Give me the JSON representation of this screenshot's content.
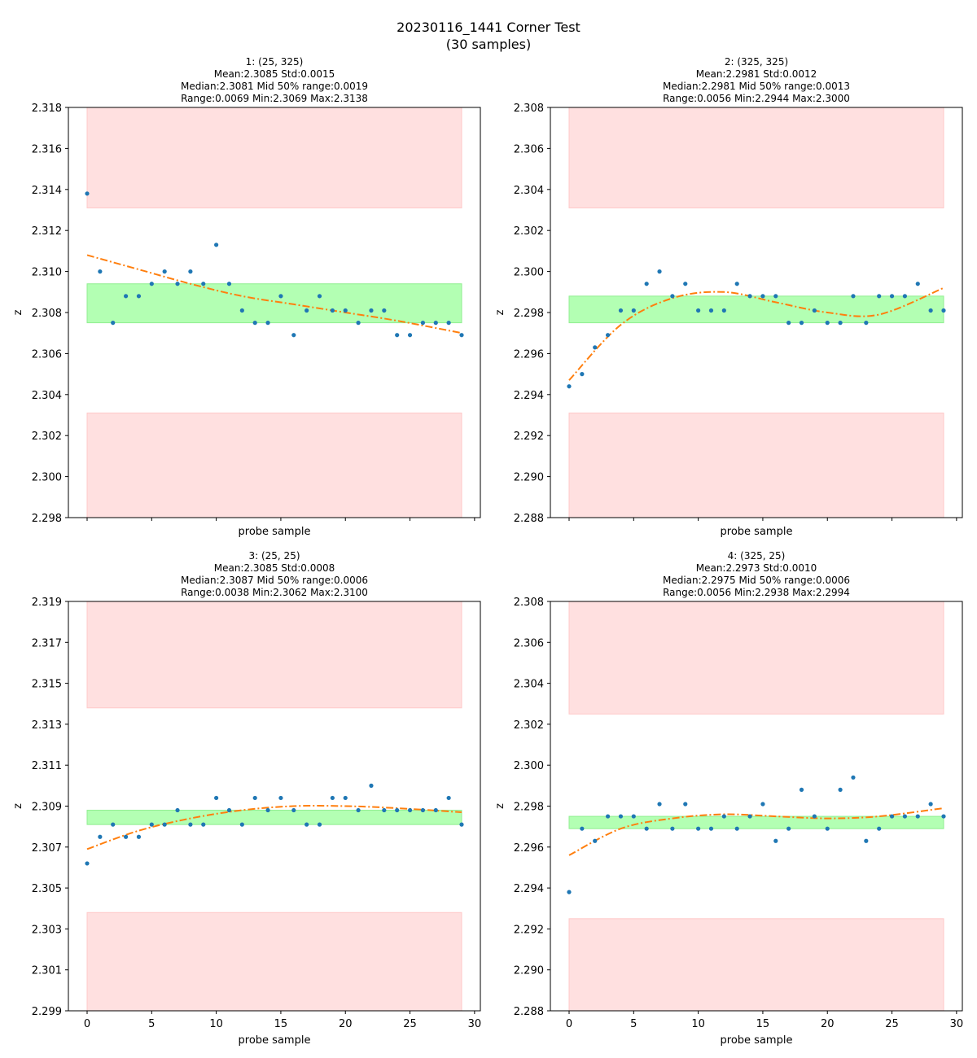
{
  "figure": {
    "title_line1": "20230116_1441 Corner Test",
    "title_line2": "(30 samples)"
  },
  "colors": {
    "point": "#1f77b4",
    "fit": "#ff7f0e",
    "green_band": "#b3ffb3",
    "red_band": "#ffe0e0"
  },
  "chart_data": [
    {
      "type": "scatter",
      "title_lines": [
        "1: (25, 325)",
        "Mean:2.3085  Std:0.0015",
        "Median:2.3081  Mid 50% range:0.0019",
        "Range:0.0069  Min:2.3069  Max:2.3138"
      ],
      "xlabel": "probe sample",
      "ylabel": "z",
      "xlim": [
        -1.45,
        30.45
      ],
      "ylim": [
        2.298,
        2.318
      ],
      "xticks": [
        0,
        5,
        10,
        15,
        20,
        25,
        30
      ],
      "xticklabels_shown": false,
      "yticks": [
        2.298,
        2.3,
        2.302,
        2.304,
        2.306,
        2.308,
        2.31,
        2.312,
        2.314,
        2.316,
        2.318
      ],
      "ytick_labels": [
        "2.298",
        "2.300",
        "2.302",
        "2.304",
        "2.306",
        "2.308",
        "2.310",
        "2.312",
        "2.314",
        "2.316",
        "2.318"
      ],
      "green_band": [
        2.3075,
        2.3094
      ],
      "red_bands": [
        [
          2.298,
          2.3031
        ],
        [
          2.3131,
          2.318
        ]
      ],
      "x": [
        0,
        1,
        2,
        3,
        4,
        5,
        6,
        7,
        8,
        9,
        10,
        11,
        12,
        13,
        14,
        15,
        16,
        17,
        18,
        19,
        20,
        21,
        22,
        23,
        24,
        25,
        26,
        27,
        28,
        29
      ],
      "y": [
        2.3138,
        2.31,
        2.3075,
        2.3088,
        2.3088,
        2.3094,
        2.31,
        2.3094,
        2.31,
        2.3094,
        2.3113,
        2.3094,
        2.3081,
        2.3075,
        2.3075,
        2.3088,
        2.3069,
        2.3081,
        2.3088,
        2.3081,
        2.3081,
        2.3075,
        2.3081,
        2.3081,
        2.3069,
        2.3069,
        2.3075,
        2.3075,
        2.3075,
        2.3069
      ],
      "fit": [
        2.3108,
        2.3101,
        2.3094,
        2.3088,
        2.3084,
        2.308,
        2.3076,
        2.307
      ]
    },
    {
      "type": "scatter",
      "title_lines": [
        "2: (325, 325)",
        "Mean:2.2981  Std:0.0012",
        "Median:2.2981  Mid 50% range:0.0013",
        "Range:0.0056  Min:2.2944  Max:2.3000"
      ],
      "xlabel": "probe sample",
      "ylabel": "z",
      "xlim": [
        -1.45,
        30.45
      ],
      "ylim": [
        2.288,
        2.308
      ],
      "xticks": [
        0,
        5,
        10,
        15,
        20,
        25,
        30
      ],
      "xticklabels_shown": false,
      "yticks": [
        2.288,
        2.29,
        2.292,
        2.294,
        2.296,
        2.298,
        2.3,
        2.302,
        2.304,
        2.306,
        2.308
      ],
      "ytick_labels": [
        "2.288",
        "2.290",
        "2.292",
        "2.294",
        "2.296",
        "2.298",
        "2.300",
        "2.302",
        "2.304",
        "2.306",
        "2.308"
      ],
      "green_band": [
        2.2975,
        2.2988
      ],
      "red_bands": [
        [
          2.288,
          2.2931
        ],
        [
          2.3031,
          2.308
        ]
      ],
      "x": [
        0,
        1,
        2,
        3,
        4,
        5,
        6,
        7,
        8,
        9,
        10,
        11,
        12,
        13,
        14,
        15,
        16,
        17,
        18,
        19,
        20,
        21,
        22,
        23,
        24,
        25,
        26,
        27,
        28,
        29
      ],
      "y": [
        2.2944,
        2.295,
        2.2963,
        2.2969,
        2.2981,
        2.2981,
        2.2994,
        2.3,
        2.2988,
        2.2994,
        2.2981,
        2.2981,
        2.2981,
        2.2994,
        2.2988,
        2.2988,
        2.2988,
        2.2975,
        2.2975,
        2.2981,
        2.2975,
        2.2975,
        2.2988,
        2.2975,
        2.2988,
        2.2988,
        2.2988,
        2.2994,
        2.2981,
        2.2981
      ],
      "fit": [
        2.2947,
        2.2974,
        2.2987,
        2.299,
        2.2985,
        2.298,
        2.2979,
        2.2992
      ]
    },
    {
      "type": "scatter",
      "title_lines": [
        "3: (25, 25)",
        "Mean:2.3085  Std:0.0008",
        "Median:2.3087  Mid 50% range:0.0006",
        "Range:0.0038  Min:2.3062  Max:2.3100"
      ],
      "xlabel": "probe sample",
      "ylabel": "z",
      "xlim": [
        -1.45,
        30.45
      ],
      "ylim": [
        2.299,
        2.319
      ],
      "xticks": [
        0,
        5,
        10,
        15,
        20,
        25,
        30
      ],
      "xticklabels_shown": true,
      "xtick_labels": [
        "0",
        "5",
        "10",
        "15",
        "20",
        "25",
        "30"
      ],
      "yticks": [
        2.299,
        2.301,
        2.303,
        2.305,
        2.307,
        2.309,
        2.311,
        2.313,
        2.315,
        2.317,
        2.319
      ],
      "ytick_labels": [
        "2.299",
        "2.301",
        "2.303",
        "2.305",
        "2.307",
        "2.309",
        "2.311",
        "2.313",
        "2.315",
        "2.317",
        "2.319"
      ],
      "green_band": [
        2.3081,
        2.3088
      ],
      "red_bands": [
        [
          2.299,
          2.3038
        ],
        [
          2.3138,
          2.319
        ]
      ],
      "x": [
        0,
        1,
        2,
        3,
        4,
        5,
        6,
        7,
        8,
        9,
        10,
        11,
        12,
        13,
        14,
        15,
        16,
        17,
        18,
        19,
        20,
        21,
        22,
        23,
        24,
        25,
        26,
        27,
        28,
        29
      ],
      "y": [
        2.3062,
        2.3075,
        2.3081,
        2.3075,
        2.3075,
        2.3081,
        2.3081,
        2.3088,
        2.3081,
        2.3081,
        2.3094,
        2.3088,
        2.3081,
        2.3094,
        2.3088,
        2.3094,
        2.3088,
        2.3081,
        2.3081,
        2.3094,
        2.3094,
        2.3088,
        2.31,
        2.3088,
        2.3088,
        2.3088,
        2.3088,
        2.3088,
        2.3094,
        2.3081
      ],
      "fit": [
        2.3069,
        2.3078,
        2.3084,
        2.3088,
        2.309,
        2.309,
        2.3089,
        2.3087
      ]
    },
    {
      "type": "scatter",
      "title_lines": [
        "4: (325, 25)",
        "Mean:2.2973  Std:0.0010",
        "Median:2.2975  Mid 50% range:0.0006",
        "Range:0.0056  Min:2.2938  Max:2.2994"
      ],
      "xlabel": "probe sample",
      "ylabel": "z",
      "xlim": [
        -1.45,
        30.45
      ],
      "ylim": [
        2.288,
        2.308
      ],
      "xticks": [
        0,
        5,
        10,
        15,
        20,
        25,
        30
      ],
      "xticklabels_shown": true,
      "xtick_labels": [
        "0",
        "5",
        "10",
        "15",
        "20",
        "25",
        "30"
      ],
      "yticks": [
        2.288,
        2.29,
        2.292,
        2.294,
        2.296,
        2.298,
        2.3,
        2.302,
        2.304,
        2.306,
        2.308
      ],
      "ytick_labels": [
        "2.288",
        "2.290",
        "2.292",
        "2.294",
        "2.296",
        "2.298",
        "2.300",
        "2.302",
        "2.304",
        "2.306",
        "2.308"
      ],
      "green_band": [
        2.2969,
        2.2975
      ],
      "red_bands": [
        [
          2.288,
          2.2925
        ],
        [
          2.3025,
          2.308
        ]
      ],
      "x": [
        0,
        1,
        2,
        3,
        4,
        5,
        6,
        7,
        8,
        9,
        10,
        11,
        12,
        13,
        14,
        15,
        16,
        17,
        18,
        19,
        20,
        21,
        22,
        23,
        24,
        25,
        26,
        27,
        28,
        29
      ],
      "y": [
        2.2938,
        2.2969,
        2.2963,
        2.2975,
        2.2975,
        2.2975,
        2.2969,
        2.2981,
        2.2969,
        2.2981,
        2.2969,
        2.2969,
        2.2975,
        2.2969,
        2.2975,
        2.2981,
        2.2963,
        2.2969,
        2.2988,
        2.2975,
        2.2969,
        2.2988,
        2.2994,
        2.2963,
        2.2969,
        2.2975,
        2.2975,
        2.2975,
        2.2981,
        2.2975
      ],
      "fit": [
        2.2956,
        2.2969,
        2.2974,
        2.2976,
        2.2975,
        2.2974,
        2.2975,
        2.2979
      ]
    }
  ]
}
